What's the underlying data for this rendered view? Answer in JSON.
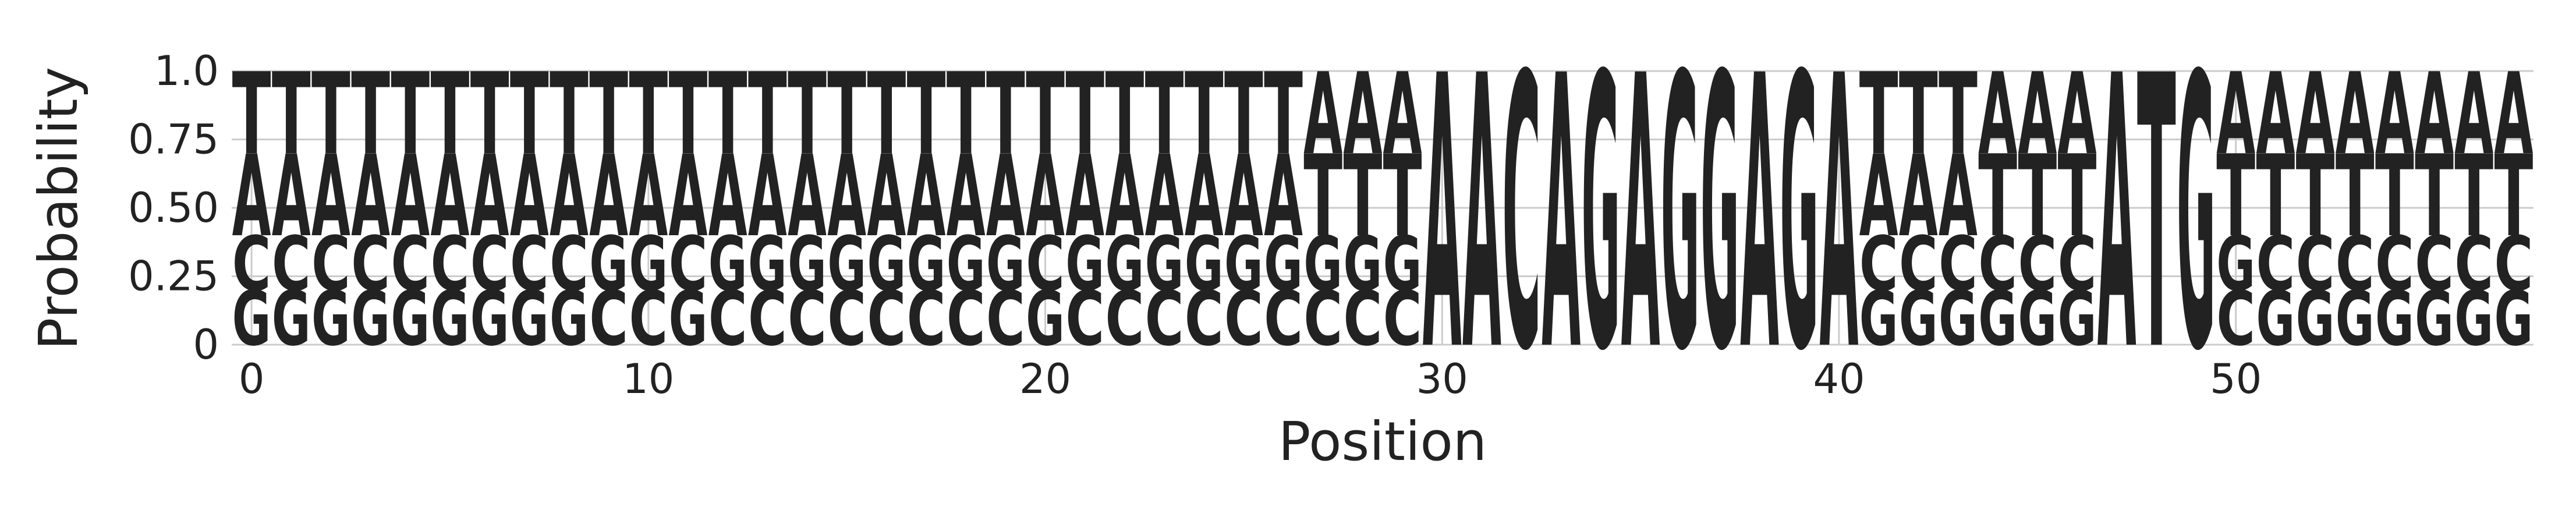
{
  "chart_data": {
    "type": "sequence-logo",
    "xlabel": "Position",
    "ylabel": "Probability",
    "ylim": [
      0,
      1
    ],
    "xlim": [
      -0.5,
      57.5
    ],
    "grid": true,
    "yticks": [
      0,
      0.25,
      0.5,
      0.75,
      1.0
    ],
    "ytick_labels": [
      "0",
      "0.25",
      "0.50",
      "0.75",
      "1.0"
    ],
    "xticks": [
      0,
      10,
      20,
      30,
      40,
      50
    ],
    "xtick_labels": [
      "0",
      "10",
      "20",
      "30",
      "40",
      "50"
    ],
    "colors": {
      "A": "#008000",
      "C": "#0000ff",
      "G": "#ffa500",
      "T": "#ff0000"
    },
    "positions": [
      {
        "G": 0.2,
        "C": 0.2,
        "A": 0.3,
        "T": 0.3
      },
      {
        "G": 0.2,
        "C": 0.2,
        "A": 0.3,
        "T": 0.3
      },
      {
        "G": 0.2,
        "C": 0.2,
        "A": 0.3,
        "T": 0.3
      },
      {
        "G": 0.2,
        "C": 0.2,
        "A": 0.3,
        "T": 0.3
      },
      {
        "G": 0.2,
        "C": 0.2,
        "A": 0.3,
        "T": 0.3
      },
      {
        "G": 0.2,
        "C": 0.2,
        "A": 0.3,
        "T": 0.3
      },
      {
        "G": 0.2,
        "C": 0.2,
        "A": 0.3,
        "T": 0.3
      },
      {
        "G": 0.2,
        "C": 0.2,
        "A": 0.3,
        "T": 0.3
      },
      {
        "G": 0.2,
        "C": 0.2,
        "A": 0.3,
        "T": 0.3
      },
      {
        "C": 0.2,
        "G": 0.2,
        "A": 0.3,
        "T": 0.3
      },
      {
        "C": 0.2,
        "G": 0.2,
        "A": 0.3,
        "T": 0.3
      },
      {
        "G": 0.2,
        "C": 0.2,
        "A": 0.3,
        "T": 0.3
      },
      {
        "C": 0.2,
        "G": 0.2,
        "A": 0.3,
        "T": 0.3
      },
      {
        "C": 0.2,
        "G": 0.2,
        "A": 0.3,
        "T": 0.3
      },
      {
        "C": 0.2,
        "G": 0.2,
        "A": 0.3,
        "T": 0.3
      },
      {
        "C": 0.2,
        "G": 0.2,
        "A": 0.3,
        "T": 0.3
      },
      {
        "C": 0.2,
        "G": 0.2,
        "A": 0.3,
        "T": 0.3
      },
      {
        "C": 0.2,
        "G": 0.2,
        "A": 0.3,
        "T": 0.3
      },
      {
        "C": 0.2,
        "G": 0.2,
        "A": 0.3,
        "T": 0.3
      },
      {
        "C": 0.2,
        "G": 0.2,
        "A": 0.3,
        "T": 0.3
      },
      {
        "G": 0.2,
        "C": 0.2,
        "A": 0.3,
        "T": 0.3
      },
      {
        "C": 0.2,
        "G": 0.2,
        "A": 0.3,
        "T": 0.3
      },
      {
        "C": 0.2,
        "G": 0.2,
        "A": 0.3,
        "T": 0.3
      },
      {
        "C": 0.2,
        "G": 0.2,
        "A": 0.3,
        "T": 0.3
      },
      {
        "C": 0.2,
        "G": 0.2,
        "A": 0.3,
        "T": 0.3
      },
      {
        "C": 0.2,
        "G": 0.2,
        "A": 0.3,
        "T": 0.3
      },
      {
        "C": 0.2,
        "G": 0.2,
        "A": 0.3,
        "T": 0.3
      },
      {
        "C": 0.2,
        "G": 0.2,
        "T": 0.3,
        "A": 0.3
      },
      {
        "C": 0.2,
        "G": 0.2,
        "T": 0.3,
        "A": 0.3
      },
      {
        "C": 0.2,
        "G": 0.2,
        "T": 0.3,
        "A": 0.3
      },
      {
        "A": 1.0
      },
      {
        "A": 1.0
      },
      {
        "C": 1.0
      },
      {
        "A": 1.0
      },
      {
        "G": 1.0
      },
      {
        "A": 1.0
      },
      {
        "G": 1.0
      },
      {
        "G": 1.0
      },
      {
        "A": 1.0
      },
      {
        "G": 1.0
      },
      {
        "A": 1.0
      },
      {
        "G": 0.2,
        "C": 0.2,
        "A": 0.3,
        "T": 0.3
      },
      {
        "G": 0.2,
        "C": 0.2,
        "A": 0.3,
        "T": 0.3
      },
      {
        "G": 0.2,
        "C": 0.2,
        "A": 0.3,
        "T": 0.3
      },
      {
        "G": 0.2,
        "C": 0.2,
        "T": 0.3,
        "A": 0.3
      },
      {
        "G": 0.2,
        "C": 0.2,
        "T": 0.3,
        "A": 0.3
      },
      {
        "G": 0.2,
        "C": 0.2,
        "T": 0.3,
        "A": 0.3
      },
      {
        "A": 1.0
      },
      {
        "T": 1.0
      },
      {
        "G": 1.0
      },
      {
        "C": 0.2,
        "G": 0.2,
        "T": 0.3,
        "A": 0.3
      },
      {
        "G": 0.2,
        "C": 0.2,
        "T": 0.3,
        "A": 0.3
      },
      {
        "G": 0.2,
        "C": 0.2,
        "T": 0.3,
        "A": 0.3
      },
      {
        "G": 0.2,
        "C": 0.2,
        "T": 0.3,
        "A": 0.3
      },
      {
        "G": 0.2,
        "C": 0.2,
        "T": 0.3,
        "A": 0.3
      },
      {
        "G": 0.2,
        "C": 0.2,
        "T": 0.3,
        "A": 0.3
      },
      {
        "G": 0.2,
        "C": 0.2,
        "T": 0.3,
        "A": 0.3
      },
      {
        "G": 0.2,
        "C": 0.2,
        "T": 0.3,
        "A": 0.3
      }
    ]
  }
}
